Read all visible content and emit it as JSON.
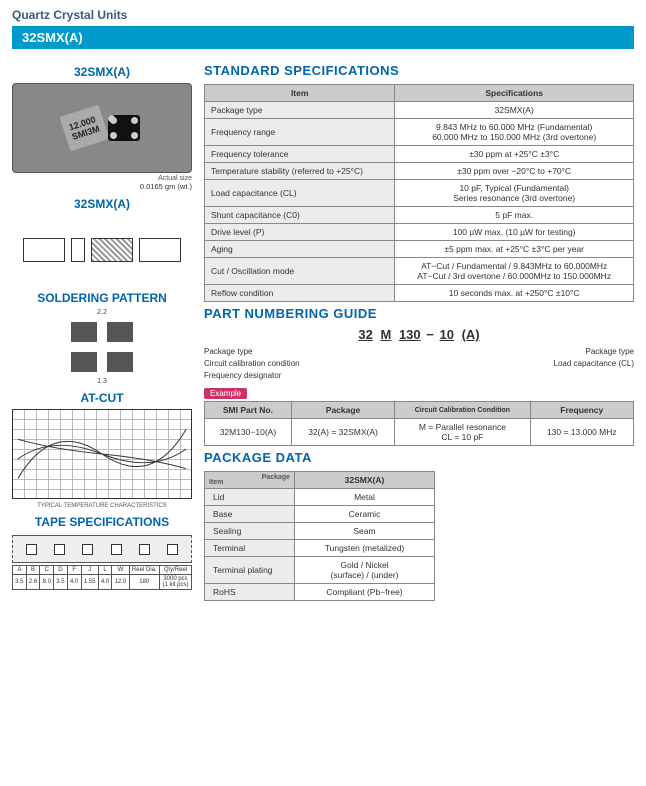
{
  "header": {
    "category": "Quartz Crystal Units",
    "model": "32SMX(A)"
  },
  "left": {
    "model_label": "32SMX(A)",
    "chip_text": "12.000\nSMI3M",
    "actual_size": "Actual size",
    "weight": "0.0165 gm (wt.)",
    "dims_label": "32SMX(A)",
    "soldering_hdr": "SOLDERING PATTERN",
    "atcut_hdr": "AT-CUT",
    "chart_caption": "TYPICAL TEMPERATURE CHARACTERISTICS",
    "tape_hdr": "TAPE SPECIFICATIONS",
    "tape_cols": [
      "A",
      "B",
      "C",
      "D",
      "F",
      "J",
      "L",
      "W",
      "Reel Dia.",
      "Qty/Reel"
    ],
    "tape_vals": [
      "3.5",
      "2.6",
      "8.0",
      "3.5",
      "4.0",
      "1.55",
      "4.0",
      "12.0",
      "180",
      "3000 pcs\n(1 kit pcs)"
    ]
  },
  "spec": {
    "hdr": "STANDARD SPECIFICATIONS",
    "cols": [
      "Item",
      "Specifications"
    ],
    "rows": [
      [
        "Package type",
        "32SMX(A)"
      ],
      [
        "Frequency range",
        "9.843 MHz to 60.000 MHz (Fundamental)\n60.000 MHz to 150.000 MHz (3rd overtone)"
      ],
      [
        "Frequency tolerance",
        "±30 ppm at +25°C ±3°C"
      ],
      [
        "Temperature stability (referred to +25°C)",
        "±30 ppm over −20°C to +70°C"
      ],
      [
        "Load capacitance (CL)",
        "10 pF, Typical (Fundamental)\nSeries resonance (3rd overtone)"
      ],
      [
        "Shunt capacitance (C0)",
        "5 pF max."
      ],
      [
        "Drive level (P)",
        "100 µW max. (10 µW for testing)"
      ],
      [
        "Aging",
        "±5 ppm max. at +25°C ±3°C per year"
      ],
      [
        "Cut / Oscillation mode",
        "AT−Cut / Fundamental /  9.843MHz to  60.000MHz\nAT−Cut / 3rd overtone / 60.000MHz to 150.000MHz"
      ],
      [
        "Reflow condition",
        "10 seconds max. at +250°C ±10°C"
      ]
    ]
  },
  "pnum": {
    "hdr": "PART NUMBERING GUIDE",
    "parts": [
      "32",
      "M",
      "130",
      "−",
      "10",
      "(A)"
    ],
    "left_labels": [
      "Package type",
      "Circuit calibration condition",
      "Frequency designator"
    ],
    "right_labels": [
      "Package type",
      "Load capacitance (CL)"
    ],
    "example_label": "Example",
    "ex_cols": [
      "SMI Part No.",
      "Package",
      "Circuit Calibration Condition",
      "Frequency"
    ],
    "ex_row": [
      "32M130−10(A)",
      "32(A) = 32SMX(A)",
      "M = Parallel resonance\nCL = 10 pF",
      "130 = 13.000 MHz"
    ]
  },
  "pkg": {
    "hdr": "PACKAGE DATA",
    "corner": "Item",
    "corner2": "Package",
    "col": "32SMX(A)",
    "rows": [
      [
        "Lid",
        "Metal"
      ],
      [
        "Base",
        "Ceramic"
      ],
      [
        "Sealing",
        "Seam"
      ],
      [
        "Terminal",
        "Tungsten (metalized)"
      ],
      [
        "Terminal plating",
        "Gold / Nickel\n(surface) / (under)"
      ],
      [
        "RoHS",
        "Compliant (Pb−free)"
      ]
    ]
  }
}
